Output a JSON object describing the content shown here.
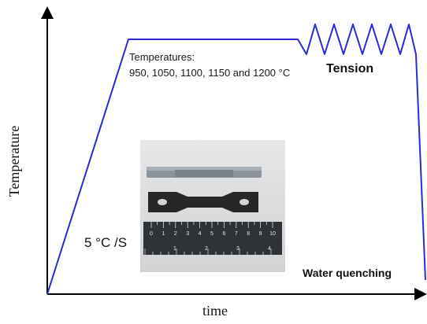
{
  "axes": {
    "x_label": "time",
    "y_label": "Temperature"
  },
  "annotations": {
    "temperatures_title": "Temperatures:",
    "temperatures_list": "950, 1050, 1100, 1150 and 1200 °C",
    "tension": "Tension",
    "water_quenching": "Water quenching",
    "heating_rate": "5 °C /S"
  },
  "photo": {
    "ruler_labels": [
      "0",
      "1",
      "2",
      "3",
      "4",
      "5",
      "6",
      "7",
      "8",
      "9",
      "10"
    ],
    "ruler_inch_labels": [
      "1",
      "2",
      "3",
      "4"
    ]
  },
  "colors": {
    "profile_line": "#2a2ad6",
    "axes": "#000000"
  },
  "icons": {
    "photo": "specimen-photograph"
  }
}
